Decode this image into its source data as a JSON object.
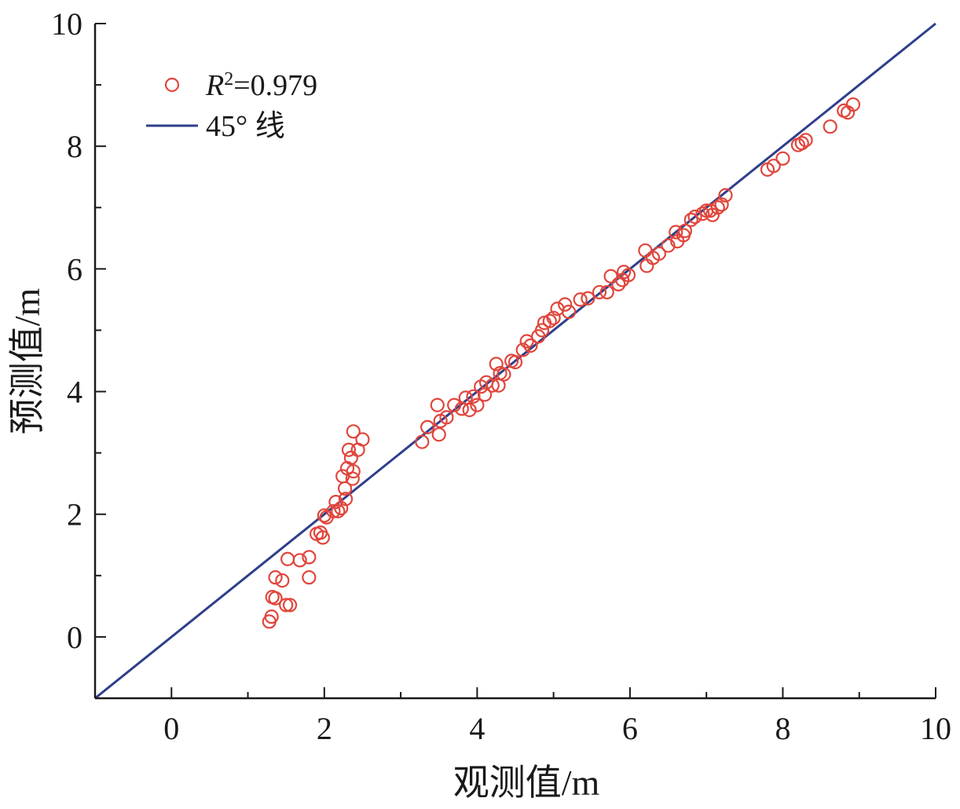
{
  "chart_data": {
    "type": "scatter",
    "xlabel": "观测值/m",
    "ylabel": "预测值/m",
    "xlim": [
      -1,
      10
    ],
    "ylim": [
      -1,
      10
    ],
    "xticks": [
      0,
      2,
      4,
      6,
      8,
      10
    ],
    "yticks": [
      0,
      2,
      4,
      6,
      8,
      10
    ],
    "grid": false,
    "legend_position": "top-left",
    "legend": {
      "scatter_label_italic": "R",
      "scatter_label_sup": "2",
      "scatter_label_rest": "=0.979",
      "line_label": "45° 线"
    },
    "colors": {
      "points": "#e0463c",
      "line": "#2e3f8a",
      "axis": "#1a1a1a"
    },
    "reference_line": {
      "x": [
        -1,
        10
      ],
      "y": [
        -1,
        10
      ]
    },
    "series": [
      {
        "points": [
          [
            1.28,
            0.25
          ],
          [
            1.31,
            0.33
          ],
          [
            1.32,
            0.65
          ],
          [
            1.36,
            0.63
          ],
          [
            1.36,
            0.97
          ],
          [
            1.45,
            0.92
          ],
          [
            1.5,
            0.52
          ],
          [
            1.55,
            0.52
          ],
          [
            1.52,
            1.27
          ],
          [
            1.68,
            1.25
          ],
          [
            1.8,
            1.3
          ],
          [
            1.8,
            0.97
          ],
          [
            1.9,
            1.68
          ],
          [
            1.95,
            1.7
          ],
          [
            1.98,
            1.62
          ],
          [
            2.0,
            1.98
          ],
          [
            2.03,
            1.95
          ],
          [
            2.12,
            2.05
          ],
          [
            2.15,
            2.2
          ],
          [
            2.18,
            2.05
          ],
          [
            2.22,
            2.1
          ],
          [
            2.24,
            2.62
          ],
          [
            2.27,
            2.42
          ],
          [
            2.28,
            2.25
          ],
          [
            2.3,
            2.75
          ],
          [
            2.32,
            3.05
          ],
          [
            2.35,
            2.92
          ],
          [
            2.37,
            2.58
          ],
          [
            2.38,
            2.7
          ],
          [
            2.38,
            3.35
          ],
          [
            2.44,
            3.05
          ],
          [
            2.5,
            3.22
          ],
          [
            3.28,
            3.18
          ],
          [
            3.35,
            3.42
          ],
          [
            3.48,
            3.78
          ],
          [
            3.5,
            3.3
          ],
          [
            3.52,
            3.52
          ],
          [
            3.6,
            3.58
          ],
          [
            3.7,
            3.78
          ],
          [
            3.8,
            3.72
          ],
          [
            3.85,
            3.9
          ],
          [
            3.9,
            3.7
          ],
          [
            3.95,
            3.92
          ],
          [
            4.0,
            3.78
          ],
          [
            4.05,
            4.08
          ],
          [
            4.1,
            3.95
          ],
          [
            4.12,
            4.15
          ],
          [
            4.2,
            4.1
          ],
          [
            4.25,
            4.45
          ],
          [
            4.28,
            4.1
          ],
          [
            4.3,
            4.3
          ],
          [
            4.35,
            4.28
          ],
          [
            4.45,
            4.5
          ],
          [
            4.5,
            4.48
          ],
          [
            4.6,
            4.68
          ],
          [
            4.65,
            4.82
          ],
          [
            4.7,
            4.75
          ],
          [
            4.8,
            4.9
          ],
          [
            4.85,
            5.0
          ],
          [
            4.88,
            5.12
          ],
          [
            4.95,
            5.15
          ],
          [
            5.0,
            5.2
          ],
          [
            5.05,
            5.35
          ],
          [
            5.15,
            5.42
          ],
          [
            5.2,
            5.3
          ],
          [
            5.35,
            5.5
          ],
          [
            5.45,
            5.52
          ],
          [
            5.6,
            5.62
          ],
          [
            5.7,
            5.62
          ],
          [
            5.75,
            5.88
          ],
          [
            5.85,
            5.75
          ],
          [
            5.9,
            5.82
          ],
          [
            5.92,
            5.95
          ],
          [
            5.98,
            5.9
          ],
          [
            6.2,
            6.3
          ],
          [
            6.22,
            6.05
          ],
          [
            6.3,
            6.18
          ],
          [
            6.38,
            6.25
          ],
          [
            6.5,
            6.38
          ],
          [
            6.6,
            6.6
          ],
          [
            6.62,
            6.45
          ],
          [
            6.7,
            6.55
          ],
          [
            6.72,
            6.62
          ],
          [
            6.8,
            6.8
          ],
          [
            6.85,
            6.85
          ],
          [
            6.95,
            6.9
          ],
          [
            7.0,
            6.95
          ],
          [
            7.05,
            6.95
          ],
          [
            7.08,
            6.88
          ],
          [
            7.15,
            7.0
          ],
          [
            7.2,
            7.05
          ],
          [
            7.25,
            7.2
          ],
          [
            7.8,
            7.62
          ],
          [
            7.88,
            7.68
          ],
          [
            8.0,
            7.8
          ],
          [
            8.2,
            8.02
          ],
          [
            8.25,
            8.05
          ],
          [
            8.3,
            8.1
          ],
          [
            8.62,
            8.32
          ],
          [
            8.8,
            8.58
          ],
          [
            8.85,
            8.55
          ],
          [
            8.92,
            8.68
          ]
        ]
      }
    ]
  }
}
